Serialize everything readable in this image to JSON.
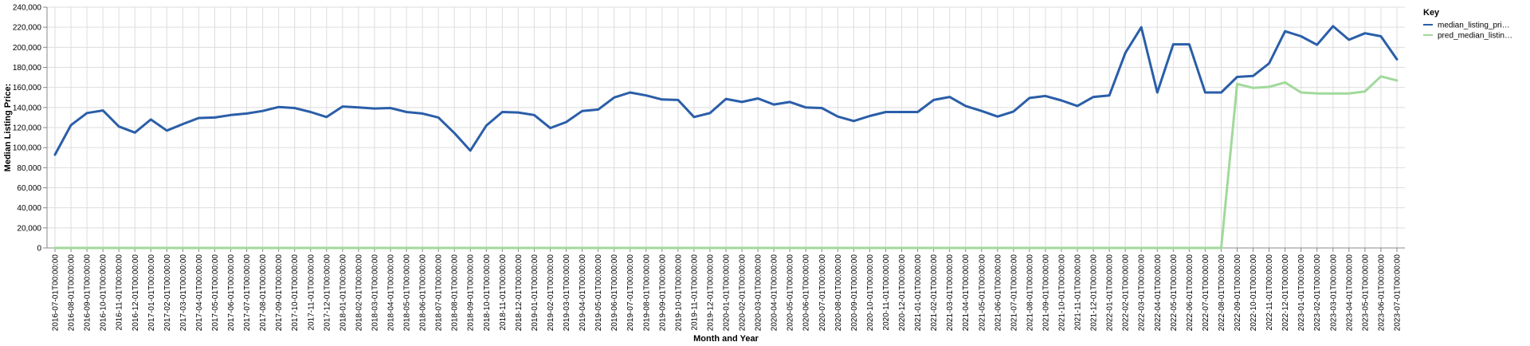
{
  "chart_data": {
    "type": "line",
    "xlabel": "Month and Year",
    "ylabel": "Median Listing Price:",
    "ylim": [
      0,
      240000
    ],
    "y_ticks": [
      "0",
      "20,000",
      "40,000",
      "60,000",
      "80,000",
      "100,000",
      "120,000",
      "140,000",
      "160,000",
      "180,000",
      "200,000",
      "220,000",
      "240,000"
    ],
    "y_tick_values": [
      0,
      20000,
      40000,
      60000,
      80000,
      100000,
      120000,
      140000,
      160000,
      180000,
      200000,
      220000,
      240000
    ],
    "grid": true,
    "legend_position": "top-right",
    "legend": {
      "title": "Key",
      "entries": [
        "median_listing_pri…",
        "pred_median_listin…"
      ]
    },
    "x": [
      "2016-07-01T00:00:00",
      "2016-08-01T00:00:00",
      "2016-09-01T00:00:00",
      "2016-10-01T00:00:00",
      "2016-11-01T00:00:00",
      "2016-12-01T00:00:00",
      "2017-01-01T00:00:00",
      "2017-02-01T00:00:00",
      "2017-03-01T00:00:00",
      "2017-04-01T00:00:00",
      "2017-05-01T00:00:00",
      "2017-06-01T00:00:00",
      "2017-07-01T00:00:00",
      "2017-08-01T00:00:00",
      "2017-09-01T00:00:00",
      "2017-10-01T00:00:00",
      "2017-11-01T00:00:00",
      "2017-12-01T00:00:00",
      "2018-01-01T00:00:00",
      "2018-02-01T00:00:00",
      "2018-03-01T00:00:00",
      "2018-04-01T00:00:00",
      "2018-05-01T00:00:00",
      "2018-06-01T00:00:00",
      "2018-07-01T00:00:00",
      "2018-08-01T00:00:00",
      "2018-09-01T00:00:00",
      "2018-10-01T00:00:00",
      "2018-11-01T00:00:00",
      "2018-12-01T00:00:00",
      "2019-01-01T00:00:00",
      "2019-02-01T00:00:00",
      "2019-03-01T00:00:00",
      "2019-04-01T00:00:00",
      "2019-05-01T00:00:00",
      "2019-06-01T00:00:00",
      "2019-07-01T00:00:00",
      "2019-08-01T00:00:00",
      "2019-09-01T00:00:00",
      "2019-10-01T00:00:00",
      "2019-11-01T00:00:00",
      "2019-12-01T00:00:00",
      "2020-01-01T00:00:00",
      "2020-02-01T00:00:00",
      "2020-03-01T00:00:00",
      "2020-04-01T00:00:00",
      "2020-05-01T00:00:00",
      "2020-06-01T00:00:00",
      "2020-07-01T00:00:00",
      "2020-08-01T00:00:00",
      "2020-09-01T00:00:00",
      "2020-10-01T00:00:00",
      "2020-11-01T00:00:00",
      "2020-12-01T00:00:00",
      "2021-01-01T00:00:00",
      "2021-02-01T00:00:00",
      "2021-03-01T00:00:00",
      "2021-04-01T00:00:00",
      "2021-05-01T00:00:00",
      "2021-06-01T00:00:00",
      "2021-07-01T00:00:00",
      "2021-08-01T00:00:00",
      "2021-09-01T00:00:00",
      "2021-10-01T00:00:00",
      "2021-11-01T00:00:00",
      "2021-12-01T00:00:00",
      "2022-01-01T00:00:00",
      "2022-02-01T00:00:00",
      "2022-03-01T00:00:00",
      "2022-04-01T00:00:00",
      "2022-05-01T00:00:00",
      "2022-06-01T00:00:00",
      "2022-07-01T00:00:00",
      "2022-08-01T00:00:00",
      "2022-09-01T00:00:00",
      "2022-10-01T00:00:00",
      "2022-11-01T00:00:00",
      "2022-12-01T00:00:00",
      "2023-01-01T00:00:00",
      "2023-02-01T00:00:00",
      "2023-03-01T00:00:00",
      "2023-04-01T00:00:00",
      "2023-05-01T00:00:00",
      "2023-06-01T00:00:00",
      "2023-07-01T00:00:00"
    ],
    "series": [
      {
        "name": "median_listing_pri…",
        "color": "#2a5ea8",
        "values": [
          93000,
          122500,
          134500,
          137000,
          121000,
          115000,
          128000,
          117000,
          123500,
          129500,
          130000,
          132500,
          134000,
          136500,
          140500,
          139500,
          135500,
          130500,
          141000,
          140000,
          139000,
          139500,
          135500,
          134000,
          130000,
          114500,
          97000,
          122000,
          135500,
          135000,
          132500,
          119500,
          125500,
          136500,
          138000,
          150000,
          155000,
          152000,
          148000,
          147500,
          130500,
          134500,
          148500,
          145500,
          149000,
          143000,
          145500,
          140000,
          139500,
          131000,
          126500,
          131500,
          135500,
          135500,
          135500,
          147500,
          150500,
          141500,
          136500,
          131000,
          136000,
          149500,
          151500,
          147000,
          141500,
          150500,
          152000,
          194500,
          220000,
          155000,
          203000,
          203000,
          155000,
          155000,
          170500,
          171500,
          184000,
          216000,
          211000,
          202500,
          221000,
          207500,
          214000,
          211000,
          188000
        ]
      },
      {
        "name": "pred_median_listin…",
        "color": "#a1d99b",
        "values": [
          0,
          0,
          0,
          0,
          0,
          0,
          0,
          0,
          0,
          0,
          0,
          0,
          0,
          0,
          0,
          0,
          0,
          0,
          0,
          0,
          0,
          0,
          0,
          0,
          0,
          0,
          0,
          0,
          0,
          0,
          0,
          0,
          0,
          0,
          0,
          0,
          0,
          0,
          0,
          0,
          0,
          0,
          0,
          0,
          0,
          0,
          0,
          0,
          0,
          0,
          0,
          0,
          0,
          0,
          0,
          0,
          0,
          0,
          0,
          0,
          0,
          0,
          0,
          0,
          0,
          0,
          0,
          0,
          0,
          0,
          0,
          0,
          0,
          0,
          163500,
          159500,
          160500,
          165000,
          155000,
          154000,
          154000,
          154000,
          156000,
          171000,
          167000
        ]
      }
    ]
  }
}
